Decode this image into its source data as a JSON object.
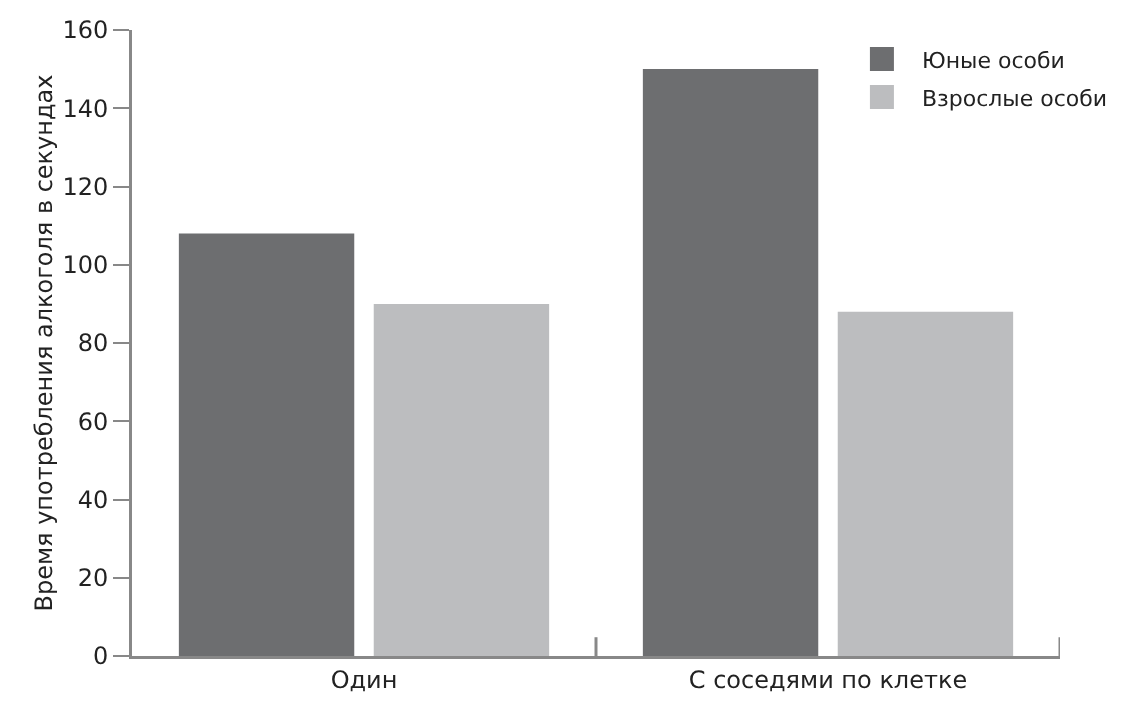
{
  "chart_data": {
    "type": "bar",
    "ylabel": "Время употребления алкоголя в секундах",
    "categories": [
      "Один",
      "С соседями по клетке"
    ],
    "series": [
      {
        "name": "Юные особи",
        "color": "#6d6e70",
        "values": [
          108,
          150
        ]
      },
      {
        "name": "Взрослые особи",
        "color": "#bcbdbf",
        "values": [
          90,
          88
        ]
      }
    ],
    "ylim": [
      0,
      160
    ],
    "yticks": [
      0,
      20,
      40,
      60,
      80,
      100,
      120,
      140,
      160
    ],
    "grid": false,
    "legend": "top right"
  }
}
